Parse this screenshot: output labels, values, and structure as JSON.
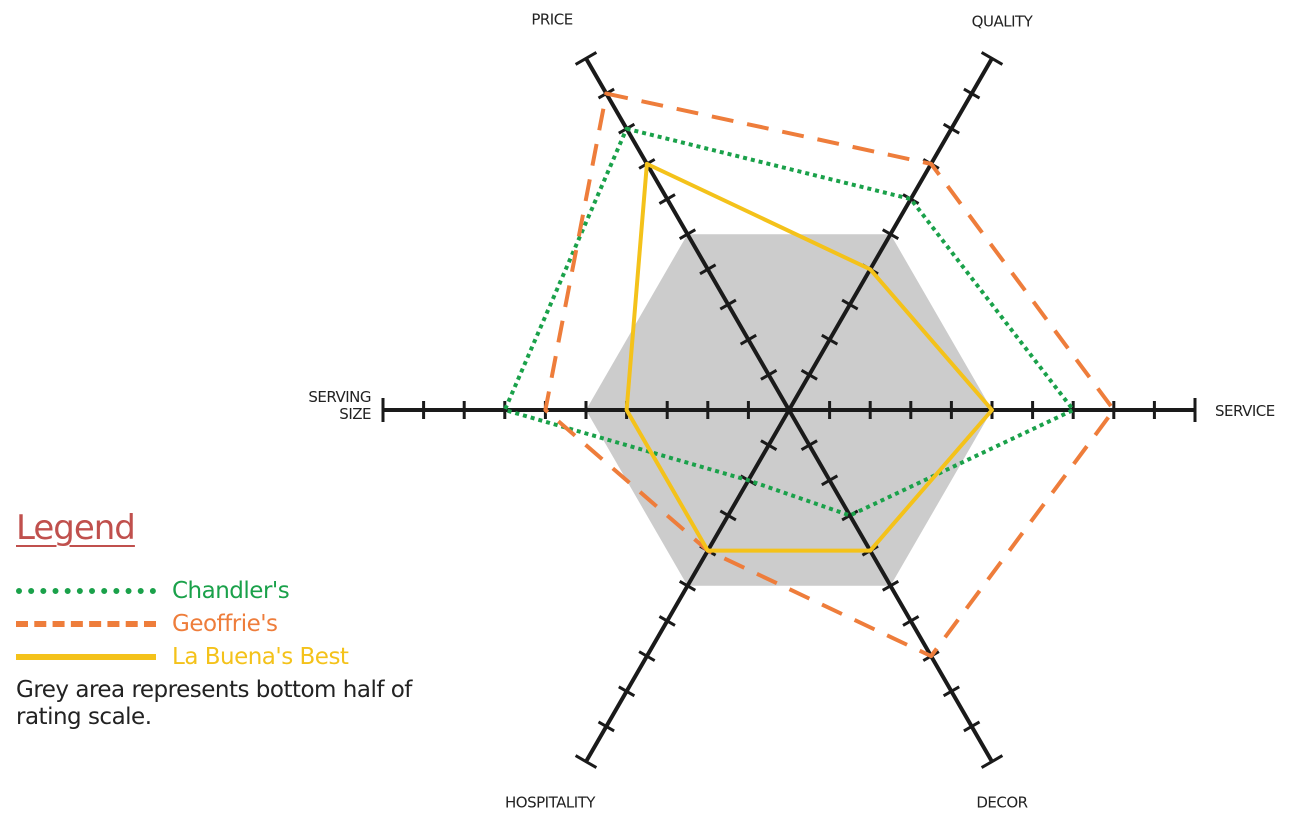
{
  "chart_data": {
    "type": "radar",
    "axes": [
      "PRICE",
      "QUALITY",
      "SERVICE",
      "DECOR",
      "HOSPITALITY",
      "SERVING SIZE"
    ],
    "scale": {
      "min": 0,
      "max": 10,
      "ticks": 10
    },
    "series": [
      {
        "name": "Chandler's",
        "values": [
          8,
          6,
          7,
          3,
          2,
          7
        ],
        "color": "#1aa14a",
        "dash": "dotted"
      },
      {
        "name": "Geoffrie's",
        "values": [
          9,
          7,
          8,
          7,
          4,
          6
        ],
        "color": "#ee7d3b",
        "dash": "dashed"
      },
      {
        "name": "La Buena's Best",
        "values": [
          7,
          4,
          5,
          4,
          4,
          4
        ],
        "color": "#f4c21a",
        "dash": "solid"
      }
    ],
    "shaded_region": {
      "from": 0,
      "to": 5,
      "color": "#cccccc"
    }
  },
  "legend": {
    "title": "Legend",
    "title_color": "#c0504d",
    "note": "Grey area represents bottom half of rating scale."
  }
}
